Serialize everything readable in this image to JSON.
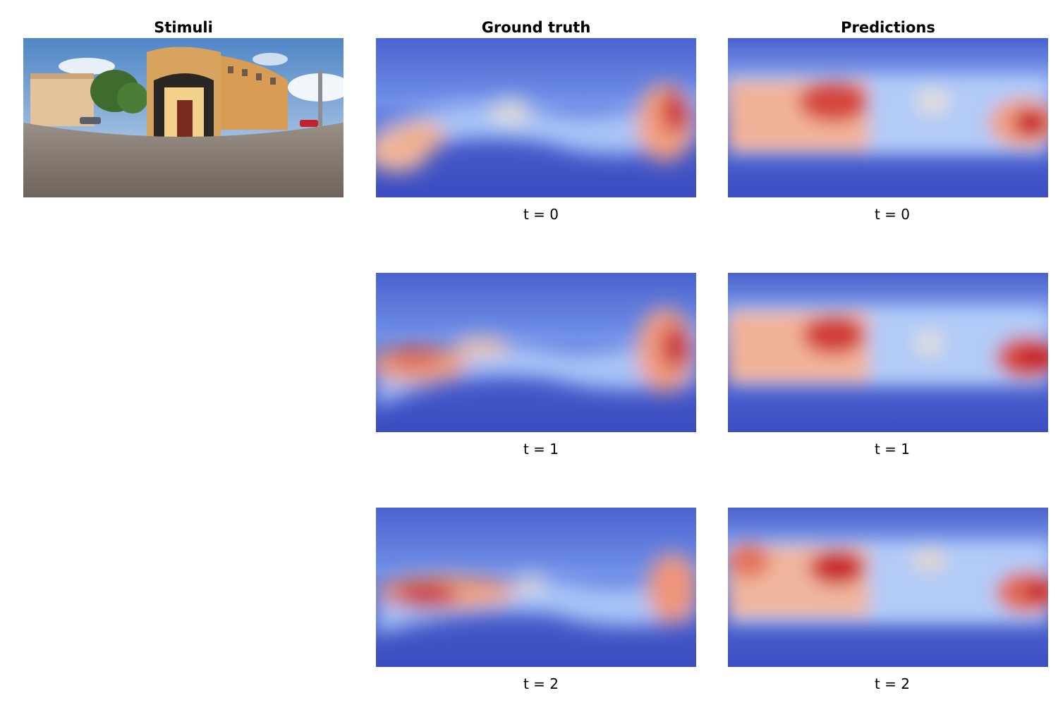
{
  "columns": {
    "stimuli": "Stimuli",
    "ground_truth": "Ground truth",
    "predictions": "Predictions"
  },
  "colormap": [
    "#3b4cc0",
    "#6688ee",
    "#aac7fd",
    "#dddcdc",
    "#f7a889",
    "#e36a53",
    "#b40426"
  ],
  "time_labels": [
    "t = 0",
    "t = 1",
    "t = 2"
  ],
  "stimulus_image": {
    "description_icon": "panorama-photo",
    "sky_color": "#6fa0d8",
    "building_color": "#d9a15b",
    "ground_color": "#8a7f76"
  }
}
